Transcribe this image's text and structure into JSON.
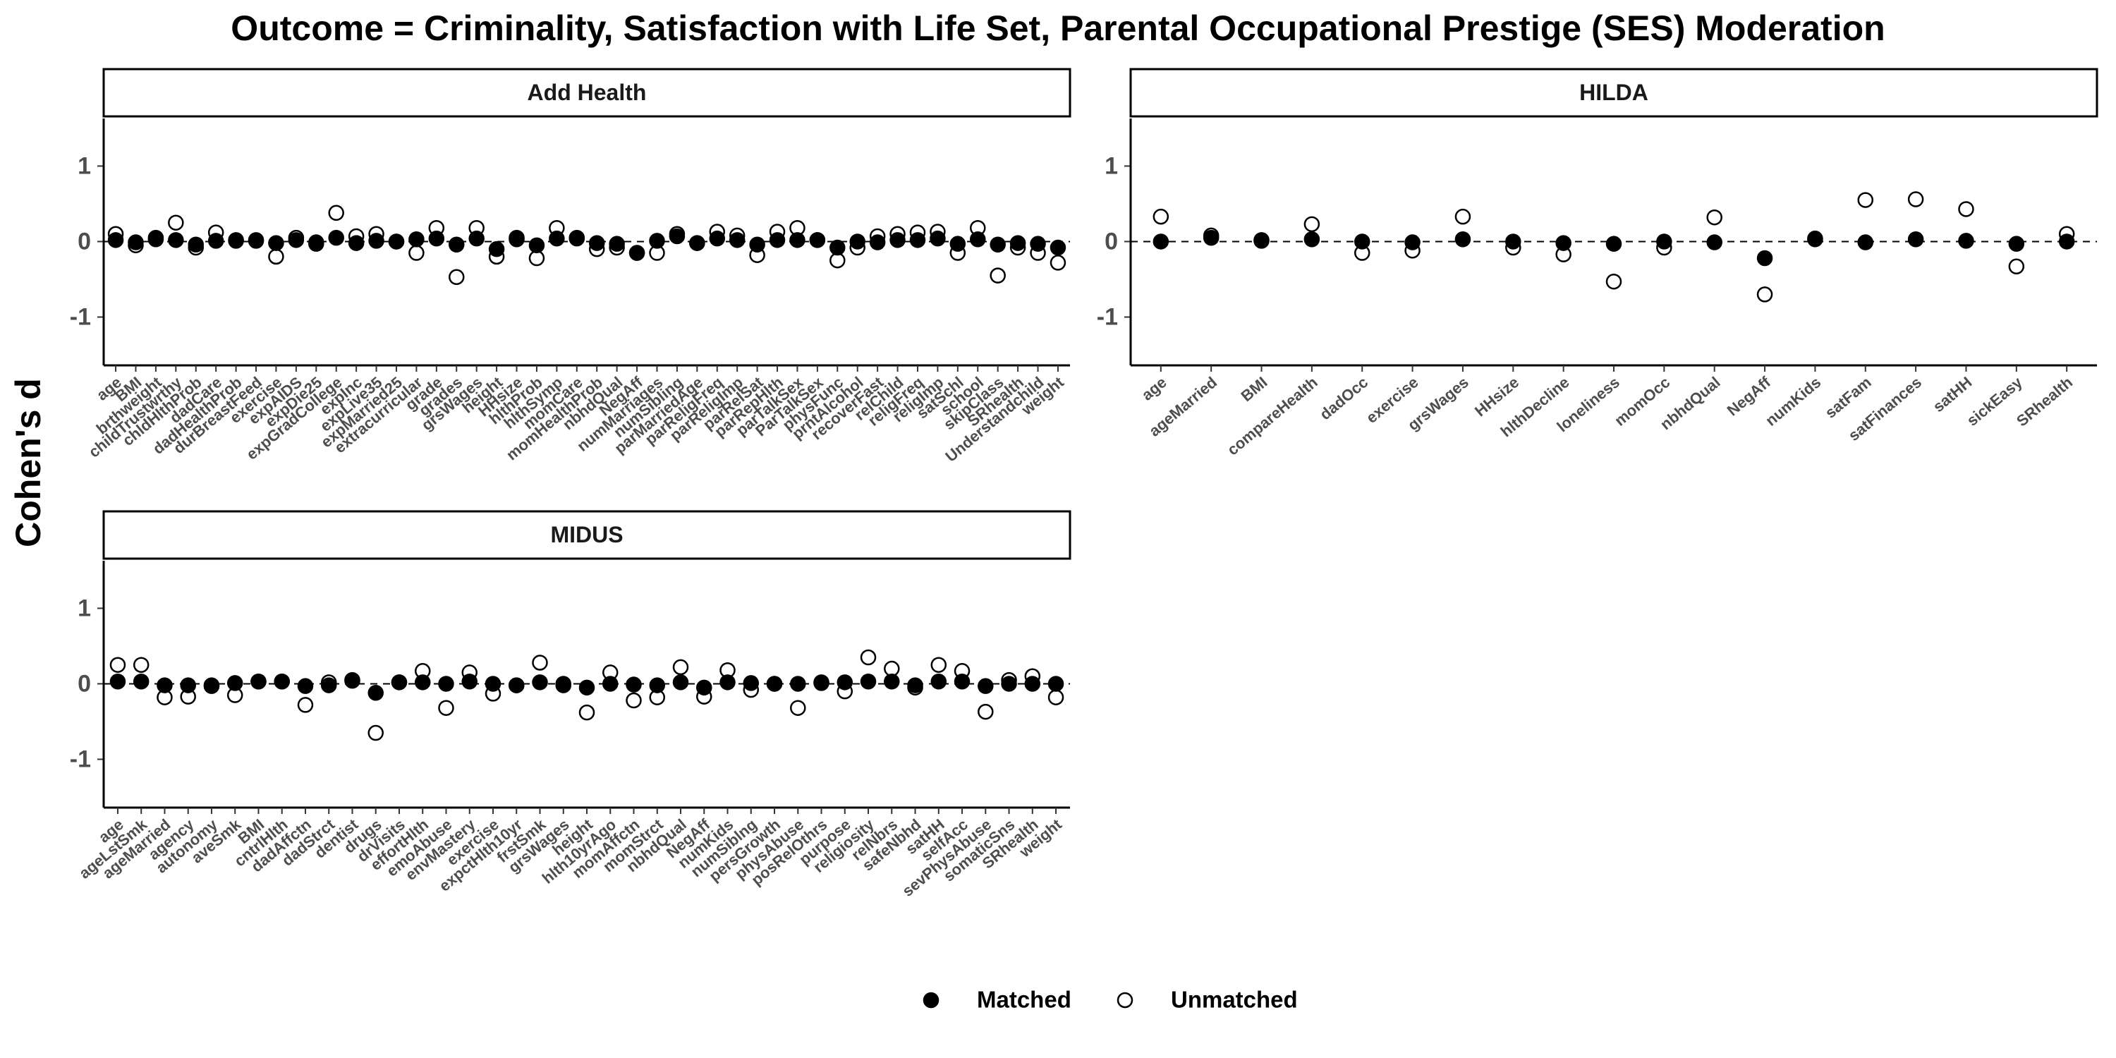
{
  "title": "Outcome = Criminality, Satisfaction with Life Set, Parental Occupational Prestige (SES) Moderation",
  "y_label": "Cohen's d",
  "chart_data": [
    {
      "type": "dot",
      "title": "Add Health",
      "categories": [
        "age",
        "BMI",
        "brthweight",
        "childTrustwrthy",
        "chldHlthProb",
        "dadCare",
        "dadHealthProb",
        "durBreastFeed",
        "exercise",
        "expAIDS",
        "expDie25",
        "expGradCollege",
        "expInc",
        "expLive35",
        "expMarried25",
        "extracurricular",
        "grade",
        "grades",
        "grsWages",
        "height",
        "HHsize",
        "hlthProb",
        "hlthSymp",
        "momCare",
        "momHealthProb",
        "nbhdQual",
        "NegAff",
        "numMarriages",
        "numSibling",
        "parMarriedAge",
        "parReligFreq",
        "parReligImp",
        "parRelSat",
        "parRepHlth",
        "parTalkSex",
        "ParTalkSex",
        "physFunc",
        "prntAlcohol",
        "recoverFast",
        "relChild",
        "religFreq",
        "religImp",
        "satSchl",
        "school",
        "skipClass",
        "SRhealth",
        "Understandchild",
        "weight"
      ],
      "series": [
        {
          "name": "Matched",
          "color": "#000000",
          "marker": "filled",
          "values": [
            0.02,
            -0.01,
            0.03,
            0.02,
            -0.04,
            0.01,
            0.01,
            0.01,
            -0.02,
            0.02,
            -0.01,
            0.05,
            -0.02,
            0.01,
            0,
            0.03,
            0.04,
            -0.04,
            0.04,
            -0.1,
            0.03,
            -0.05,
            0.04,
            0.04,
            -0.02,
            -0.03,
            -0.15,
            0.01,
            0.07,
            -0.02,
            0.04,
            0.02,
            -0.04,
            0.02,
            0.02,
            0.02,
            -0.08,
            0,
            -0.01,
            0.02,
            0.02,
            0.04,
            -0.03,
            0.03,
            -0.04,
            -0.02,
            -0.03,
            -0.08
          ]
        },
        {
          "name": "Unmatched",
          "color": "#000000",
          "marker": "open",
          "values": [
            0.1,
            -0.05,
            0.05,
            0.25,
            -0.08,
            0.12,
            0.02,
            0.02,
            -0.2,
            0.05,
            -0.03,
            0.38,
            0.07,
            0.1,
            0,
            -0.15,
            0.18,
            -0.47,
            0.18,
            -0.2,
            0.05,
            -0.22,
            0.18,
            0.05,
            -0.1,
            -0.08,
            -0.15,
            -0.15,
            0.1,
            -0.02,
            0.13,
            0.08,
            -0.18,
            0.13,
            0.18,
            0.02,
            -0.25,
            -0.08,
            0.07,
            0.1,
            0.12,
            0.13,
            -0.15,
            0.18,
            -0.45,
            -0.08,
            -0.15,
            -0.28
          ]
        }
      ],
      "ylim": [
        -1.64,
        1.63
      ],
      "yticks": [
        -1,
        0,
        1
      ],
      "reference_line": 0
    },
    {
      "type": "dot",
      "title": "HILDA",
      "categories": [
        "age",
        "ageMarried",
        "BMI",
        "compareHealth",
        "dadOcc",
        "exercise",
        "grsWages",
        "HHsize",
        "hlthDecline",
        "loneliness",
        "momOcc",
        "nbhdQual",
        "NegAff",
        "numKids",
        "satFam",
        "satFinances",
        "satHH",
        "sickEasy",
        "SRhealth"
      ],
      "series": [
        {
          "name": "Matched",
          "color": "#000000",
          "marker": "filled",
          "values": [
            0,
            0.05,
            0.01,
            0.03,
            0,
            -0.01,
            0.03,
            0,
            -0.02,
            -0.03,
            0,
            -0.01,
            -0.22,
            0.03,
            -0.01,
            0.03,
            0.01,
            -0.03,
            0
          ]
        },
        {
          "name": "Unmatched",
          "color": "#000000",
          "marker": "open",
          "values": [
            0.33,
            0.08,
            0.02,
            0.23,
            -0.15,
            -0.12,
            0.33,
            -0.08,
            -0.17,
            -0.53,
            -0.08,
            0.32,
            -0.7,
            0.04,
            0.55,
            0.56,
            0.43,
            -0.33,
            0.1
          ]
        }
      ],
      "ylim": [
        -1.64,
        1.63
      ],
      "yticks": [
        -1,
        0,
        1
      ],
      "reference_line": 0
    },
    {
      "type": "dot",
      "title": "MIDUS",
      "categories": [
        "age",
        "ageLstSmk",
        "ageMarried",
        "agency",
        "autonomy",
        "aveSmk",
        "BMI",
        "cntrlHlth",
        "dadAffctn",
        "dadStrct",
        "dentist",
        "drugs",
        "drVisits",
        "effortHlth",
        "emoAbuse",
        "envMastery",
        "exercise",
        "expctHlth10yr",
        "frstSmk",
        "grsWages",
        "height",
        "hlth10yrAgo",
        "momAffctn",
        "momStrct",
        "nbhdQual",
        "NegAff",
        "numKids",
        "numSiblng",
        "persGrowth",
        "physAbuse",
        "posRelOthrs",
        "purpose",
        "religiosity",
        "relNbrs",
        "safeNbhd",
        "satHH",
        "selfAcc",
        "sevPhysAbuse",
        "somaticSns",
        "SRhealth",
        "weight"
      ],
      "series": [
        {
          "name": "Matched",
          "color": "#000000",
          "marker": "filled",
          "values": [
            0.03,
            0.03,
            -0.02,
            -0.02,
            -0.02,
            0.01,
            0.03,
            0.03,
            -0.03,
            -0.02,
            0.04,
            -0.12,
            0.02,
            0.02,
            0,
            0.03,
            0,
            -0.02,
            0.02,
            0,
            -0.05,
            0,
            -0.01,
            -0.02,
            0.02,
            -0.05,
            0.02,
            0.01,
            0,
            0,
            0.01,
            0.02,
            0.03,
            0.03,
            -0.02,
            0.03,
            0.03,
            -0.03,
            0,
            0,
            0
          ]
        },
        {
          "name": "Unmatched",
          "color": "#000000",
          "marker": "open",
          "values": [
            0.25,
            0.25,
            -0.18,
            -0.17,
            -0.03,
            -0.15,
            0.03,
            0.03,
            -0.28,
            0.02,
            0.05,
            -0.65,
            0.02,
            0.17,
            -0.32,
            0.15,
            -0.13,
            -0.02,
            0.28,
            -0.02,
            -0.38,
            0.15,
            -0.22,
            -0.18,
            0.22,
            -0.17,
            0.18,
            -0.08,
            0,
            -0.32,
            0.02,
            -0.1,
            0.35,
            0.2,
            -0.05,
            0.25,
            0.17,
            -0.37,
            0.05,
            0.1,
            -0.18
          ]
        }
      ],
      "ylim": [
        -1.64,
        1.63
      ],
      "yticks": [
        -1,
        0,
        1
      ],
      "reference_line": 0
    }
  ]
}
